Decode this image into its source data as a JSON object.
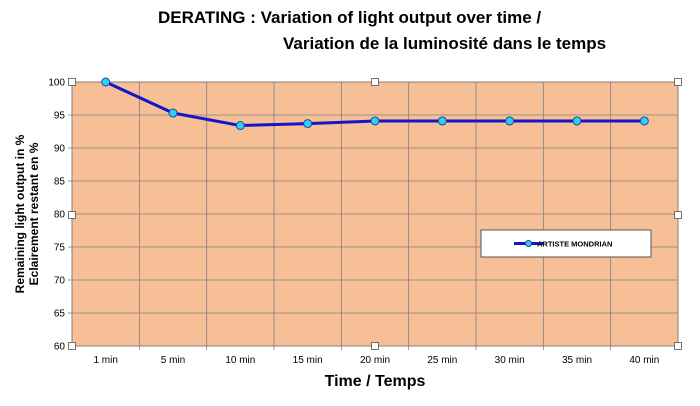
{
  "title_line1": "DERATING : Variation of light output over time /",
  "title_line2": "Variation de la luminosité dans le temps",
  "chart_data": {
    "type": "line",
    "categories": [
      "1 min",
      "5 min",
      "10 min",
      "15 min",
      "20 min",
      "25 min",
      "30 min",
      "35 min",
      "40 min"
    ],
    "series": [
      {
        "name": "ARTISTE MONDRIAN",
        "values": [
          100,
          95.3,
          93.4,
          93.7,
          94.1,
          94.1,
          94.1,
          94.1,
          94.1
        ],
        "color": "#1414c8",
        "marker_color": "#33ccff"
      }
    ],
    "xlabel": "Time / Temps",
    "ylabel_line1": "Remaining light output in %",
    "ylabel_line2": "Eclairement restant en %",
    "ylim": [
      60,
      100
    ],
    "yticks": [
      60,
      65,
      70,
      75,
      80,
      85,
      90,
      95,
      100
    ],
    "plot_background": "#f7bf96",
    "grid": true,
    "legend_position": "right"
  }
}
